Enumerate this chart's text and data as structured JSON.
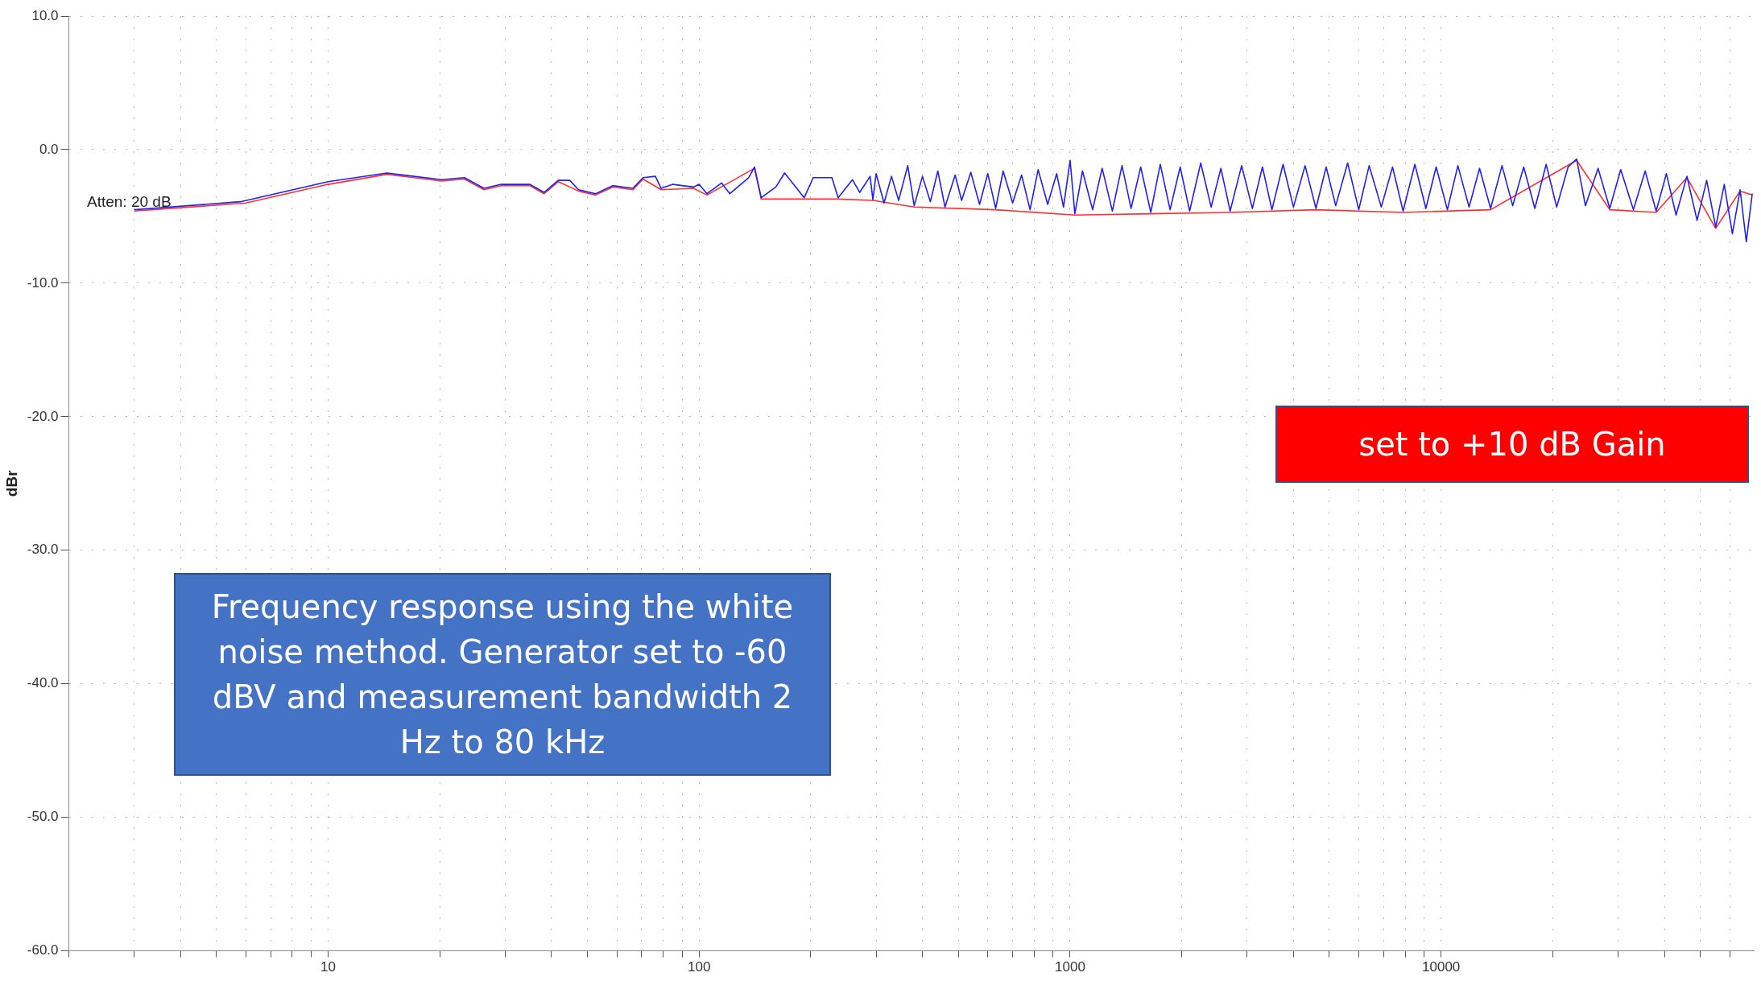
{
  "chart_data": {
    "type": "line",
    "ylabel": "dBr",
    "log": "x",
    "grid": true,
    "legend": false,
    "marker": "none",
    "line_style": "solid",
    "xlim": [
      2,
      70000
    ],
    "ylim": [
      -60,
      10
    ],
    "xticks": [
      {
        "value": 2,
        "label": null
      },
      {
        "value": 3,
        "label": null
      },
      {
        "value": 4,
        "label": null
      },
      {
        "value": 5,
        "label": null
      },
      {
        "value": 6,
        "label": null
      },
      {
        "value": 7,
        "label": null
      },
      {
        "value": 8,
        "label": null
      },
      {
        "value": 9,
        "label": null
      },
      10,
      {
        "value": 20,
        "label": null
      },
      {
        "value": 30,
        "label": null
      },
      {
        "value": 40,
        "label": null
      },
      {
        "value": 50,
        "label": null
      },
      {
        "value": 60,
        "label": null
      },
      {
        "value": 70,
        "label": null
      },
      {
        "value": 80,
        "label": null
      },
      {
        "value": 90,
        "label": null
      },
      100,
      {
        "value": 200,
        "label": null
      },
      {
        "value": 300,
        "label": null
      },
      {
        "value": 400,
        "label": null
      },
      {
        "value": 500,
        "label": null
      },
      {
        "value": 600,
        "label": null
      },
      {
        "value": 700,
        "label": null
      },
      {
        "value": 800,
        "label": null
      },
      {
        "value": 900,
        "label": null
      },
      1000,
      {
        "value": 2000,
        "label": null
      },
      {
        "value": 3000,
        "label": null
      },
      {
        "value": 4000,
        "label": null
      },
      {
        "value": 5000,
        "label": null
      },
      {
        "value": 6000,
        "label": null
      },
      {
        "value": 7000,
        "label": null
      },
      {
        "value": 8000,
        "label": null
      },
      {
        "value": 9000,
        "label": null
      },
      10000,
      {
        "value": 20000,
        "label": null
      },
      {
        "value": 30000,
        "label": null
      },
      {
        "value": 40000,
        "label": null
      },
      {
        "value": 50000,
        "label": null
      },
      {
        "value": 60000,
        "label": null
      }
    ],
    "yticks": [
      {
        "value": 10,
        "label": "10.0"
      },
      {
        "value": 0,
        "label": "0.0"
      },
      {
        "value": -10,
        "label": "-10.0"
      },
      {
        "value": -20,
        "label": "-20.0"
      },
      {
        "value": -30,
        "label": "-30.0"
      },
      {
        "value": -40,
        "label": "-40.0"
      },
      {
        "value": -50,
        "label": "-50.0"
      },
      {
        "value": -60,
        "label": "-60.0"
      }
    ],
    "series": [
      {
        "color": "#ff3030",
        "x": [
          3,
          6,
          10,
          14.4,
          20.2,
          23.3,
          26.3,
          29.3,
          35,
          38.2,
          41.7,
          47.3,
          52.6,
          58.5,
          66.3,
          70.6,
          79,
          96.5,
          105,
          141,
          147,
          192,
          237,
          294,
          380,
          630,
          1030,
          1650,
          2700,
          4600,
          7900,
          13600,
          23200,
          28500,
          38000,
          46000,
          55000,
          64000,
          69000
        ],
        "values": [
          -4.6,
          -4.0,
          -2.6,
          -1.85,
          -2.35,
          -2.2,
          -3.0,
          -2.7,
          -2.7,
          -3.3,
          -2.4,
          -3.1,
          -3.4,
          -2.8,
          -3.0,
          -2.2,
          -3.0,
          -2.9,
          -3.4,
          -1.4,
          -3.7,
          -3.7,
          -3.7,
          -3.8,
          -4.3,
          -4.5,
          -4.9,
          -4.8,
          -4.7,
          -4.5,
          -4.7,
          -4.5,
          -0.8,
          -4.5,
          -4.7,
          -2.1,
          -5.9,
          -3.1,
          -3.4
        ]
      },
      {
        "color": "#2020f0",
        "x": [
          3,
          5.8,
          10,
          14.4,
          20.2,
          23.3,
          26.3,
          29.3,
          35,
          38.2,
          41.7,
          44.8,
          47.3,
          52.6,
          58.5,
          66.3,
          70.6,
          76.2,
          79,
          84.9,
          96.5,
          100,
          105,
          115,
          121,
          136,
          141,
          147,
          161,
          170,
          192,
          203,
          228,
          237,
          259,
          271,
          289,
          294,
          300,
          315,
          330,
          345,
          365,
          380,
          400,
          420,
          440,
          460,
          490,
          510,
          540,
          570,
          600,
          630,
          660,
          700,
          740,
          780,
          820,
          870,
          920,
          960,
          1000,
          1030,
          1080,
          1150,
          1220,
          1300,
          1380,
          1460,
          1550,
          1650,
          1750,
          1860,
          1980,
          2100,
          2250,
          2400,
          2550,
          2700,
          2900,
          3100,
          3300,
          3500,
          3750,
          4000,
          4300,
          4600,
          4900,
          5200,
          5600,
          6000,
          6400,
          6900,
          7400,
          7900,
          8500,
          9100,
          9700,
          10400,
          11100,
          11900,
          12700,
          13600,
          14600,
          15600,
          16700,
          17900,
          19200,
          20500,
          22000,
          23200,
          24500,
          26500,
          28500,
          30500,
          33000,
          35500,
          38000,
          40500,
          43000,
          46000,
          49000,
          52000,
          55000,
          58000,
          61000,
          64000,
          66500,
          69000
        ],
        "values": [
          -4.5,
          -3.9,
          -2.4,
          -1.75,
          -2.25,
          -2.1,
          -2.9,
          -2.6,
          -2.6,
          -3.2,
          -2.3,
          -2.3,
          -3.0,
          -3.3,
          -2.7,
          -2.9,
          -2.1,
          -2.0,
          -2.9,
          -2.6,
          -2.8,
          -2.6,
          -3.3,
          -2.5,
          -3.3,
          -2.1,
          -1.3,
          -3.6,
          -2.8,
          -1.75,
          -3.6,
          -2.1,
          -2.1,
          -3.6,
          -2.25,
          -3.2,
          -2.0,
          -3.75,
          -1.8,
          -4.0,
          -2.0,
          -3.8,
          -1.2,
          -4.2,
          -2.0,
          -3.9,
          -1.6,
          -4.3,
          -1.9,
          -3.8,
          -1.7,
          -4.1,
          -1.8,
          -4.4,
          -1.6,
          -4.0,
          -1.9,
          -4.5,
          -1.5,
          -4.1,
          -1.8,
          -4.3,
          -0.8,
          -4.8,
          -1.6,
          -4.5,
          -1.4,
          -4.6,
          -1.2,
          -4.4,
          -1.3,
          -4.7,
          -1.1,
          -4.5,
          -1.3,
          -4.6,
          -1.0,
          -4.3,
          -1.4,
          -4.6,
          -1.2,
          -4.4,
          -1.3,
          -4.5,
          -1.1,
          -4.3,
          -1.2,
          -4.4,
          -1.3,
          -4.2,
          -1.0,
          -4.5,
          -1.2,
          -4.3,
          -1.3,
          -4.6,
          -1.1,
          -4.4,
          -1.3,
          -4.5,
          -1.2,
          -4.3,
          -1.4,
          -4.4,
          -1.2,
          -4.2,
          -1.3,
          -4.4,
          -1.1,
          -4.3,
          -1.3,
          -0.7,
          -4.2,
          -1.4,
          -4.4,
          -1.5,
          -4.5,
          -1.6,
          -4.6,
          -1.8,
          -4.9,
          -2.0,
          -5.3,
          -2.3,
          -5.8,
          -2.6,
          -6.3,
          -3.0,
          -6.9,
          -3.3
        ]
      }
    ],
    "annotations": [
      "Atten: 20 dB",
      "Frequency response using the white noise method. Generator set to -60 dBV and measurement bandwidth 2 Hz to 80 kHz",
      "set to +10 dB Gain"
    ]
  }
}
